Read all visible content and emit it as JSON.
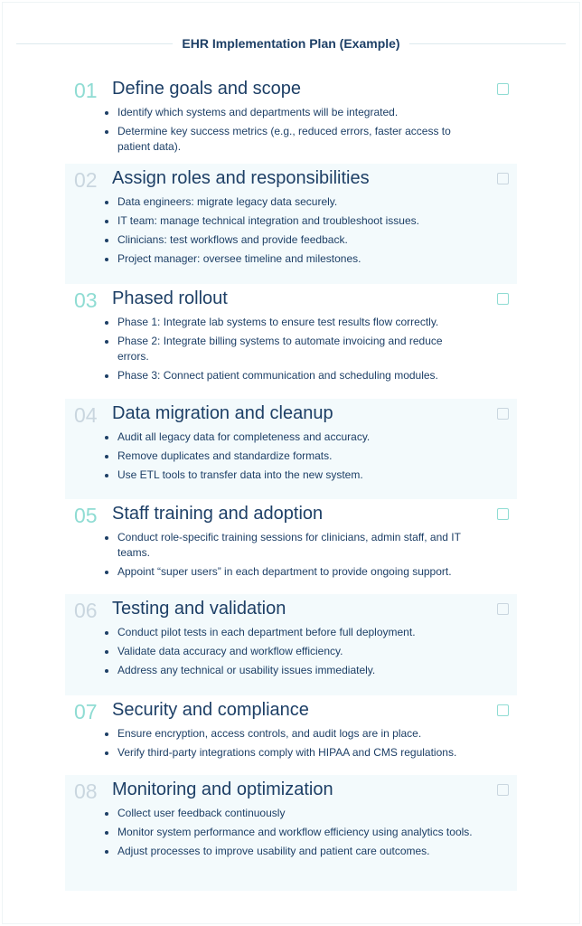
{
  "title": "EHR Implementation Plan (Example)",
  "colors": {
    "accent": "#8fdcd3",
    "muted": "#c9d6df",
    "text": "#1d3f66",
    "alt_bg": "#f3fafc"
  },
  "sections": [
    {
      "num": "01",
      "title": "Define goals and scope",
      "checked": false,
      "items": [
        "Identify which systems and departments will be integrated.",
        "Determine key success metrics (e.g., reduced errors, faster access to patient data)."
      ]
    },
    {
      "num": "02",
      "title": "Assign roles and responsibilities",
      "checked": false,
      "items": [
        "Data engineers: migrate legacy data securely.",
        "IT team: manage technical integration and troubleshoot issues.",
        "Clinicians: test workflows and provide feedback.",
        "Project manager: oversee timeline and milestones."
      ]
    },
    {
      "num": "03",
      "title": "Phased rollout",
      "checked": false,
      "items": [
        "Phase 1: Integrate lab systems to ensure test results flow correctly.",
        "Phase 2: Integrate billing systems to automate invoicing and reduce errors.",
        "Phase 3: Connect patient communication and scheduling modules."
      ]
    },
    {
      "num": "04",
      "title": "Data migration and cleanup",
      "checked": false,
      "items": [
        "Audit all legacy data for completeness and accuracy.",
        "Remove duplicates and standardize formats.",
        "Use ETL tools to transfer data into the new system."
      ]
    },
    {
      "num": "05",
      "title": "Staff training and adoption",
      "checked": false,
      "items": [
        "Conduct role-specific training sessions for clinicians, admin staff, and IT teams.",
        "Appoint “super users” in each department to provide ongoing support."
      ]
    },
    {
      "num": "06",
      "title": "Testing and validation",
      "checked": false,
      "items": [
        "Conduct pilot tests in each department before full deployment.",
        "Validate data accuracy and workflow efficiency.",
        "Address any technical or usability issues immediately."
      ]
    },
    {
      "num": "07",
      "title": "Security and compliance",
      "checked": false,
      "items": [
        "Ensure encryption, access controls, and audit logs are in place.",
        "Verify third-party integrations comply with HIPAA and CMS regulations."
      ]
    },
    {
      "num": "08",
      "title": "Monitoring and optimization",
      "checked": false,
      "items": [
        "Collect user feedback continuously",
        "Monitor system performance and workflow efficiency using analytics tools.",
        "Adjust processes to improve usability and patient care outcomes."
      ]
    }
  ]
}
